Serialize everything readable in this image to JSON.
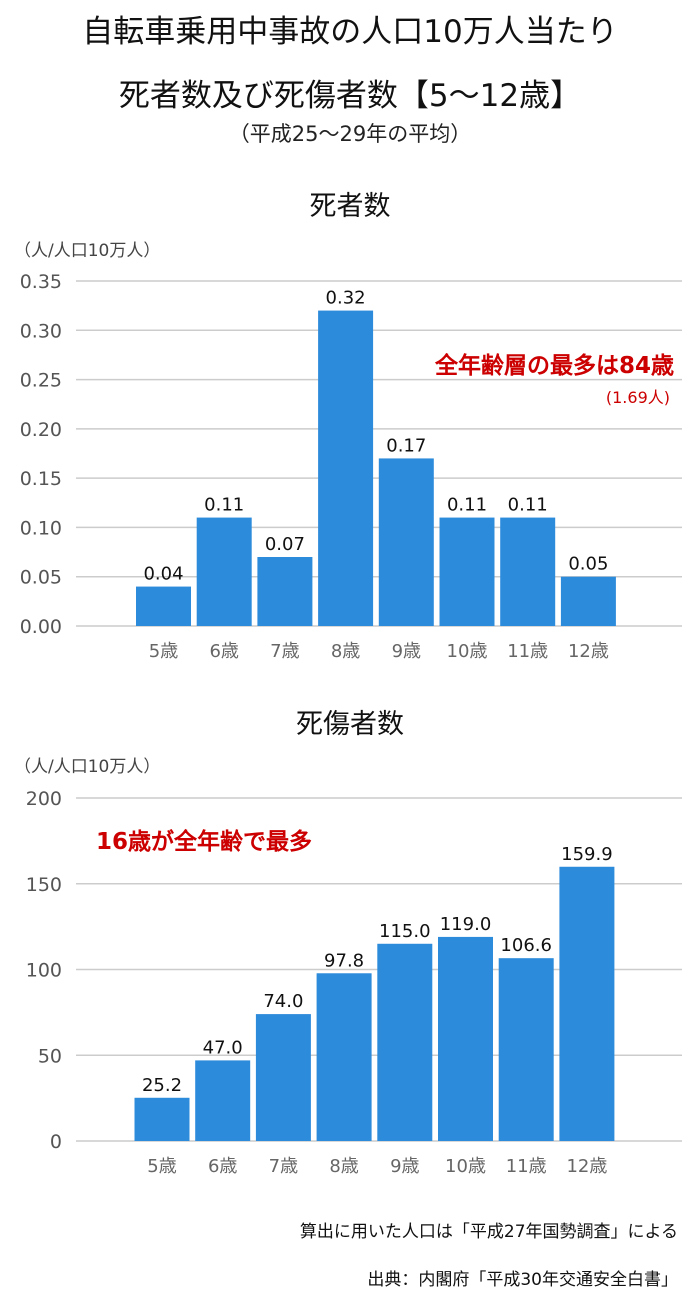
{
  "header": {
    "title_line1": "自転車乗用中事故の人口10万人当たり",
    "title_line2": "死者数及び死傷者数【5〜12歳】",
    "subtitle": "（平成25〜29年の平均）"
  },
  "chart_data": [
    {
      "type": "bar",
      "title": "死者数",
      "ylabel": "（人/人口10万人）",
      "categories": [
        "5歳",
        "6歳",
        "7歳",
        "8歳",
        "9歳",
        "10歳",
        "11歳",
        "12歳"
      ],
      "values": [
        0.04,
        0.11,
        0.07,
        0.32,
        0.17,
        0.11,
        0.11,
        0.05
      ],
      "value_labels": [
        "0.04",
        "0.11",
        "0.07",
        "0.32",
        "0.17",
        "0.11",
        "0.11",
        "0.05"
      ],
      "ylim": [
        0,
        0.35
      ],
      "yticks": [
        "0.00",
        "0.05",
        "0.10",
        "0.15",
        "0.20",
        "0.25",
        "0.30",
        "0.35"
      ],
      "grid": true,
      "bar_color": "#2d8bdb",
      "annotation": "全年齢層の最多は84歳",
      "annotation_sub": "(1.69人)"
    },
    {
      "type": "bar",
      "title": "死傷者数",
      "ylabel": "（人/人口10万人）",
      "categories": [
        "5歳",
        "6歳",
        "7歳",
        "8歳",
        "9歳",
        "10歳",
        "11歳",
        "12歳"
      ],
      "values": [
        25.2,
        47.0,
        74.0,
        97.8,
        115.0,
        119.0,
        106.6,
        159.9
      ],
      "value_labels": [
        "25.2",
        "47.0",
        "74.0",
        "97.8",
        "115.0",
        "119.0",
        "106.6",
        "159.9"
      ],
      "ylim": [
        0,
        200
      ],
      "yticks": [
        "0",
        "50",
        "100",
        "150",
        "200"
      ],
      "grid": true,
      "bar_color": "#2d8bdb",
      "annotation": "16歳が全年齢で最多"
    }
  ],
  "footer": {
    "note1": "算出に用いた人口は「平成27年国勢調査」による",
    "note2": "出典：内閣府「平成30年交通安全白書」"
  },
  "colors": {
    "bar": "#2d8bdb",
    "accent": "#cc0000",
    "grid": "#cccccc"
  }
}
